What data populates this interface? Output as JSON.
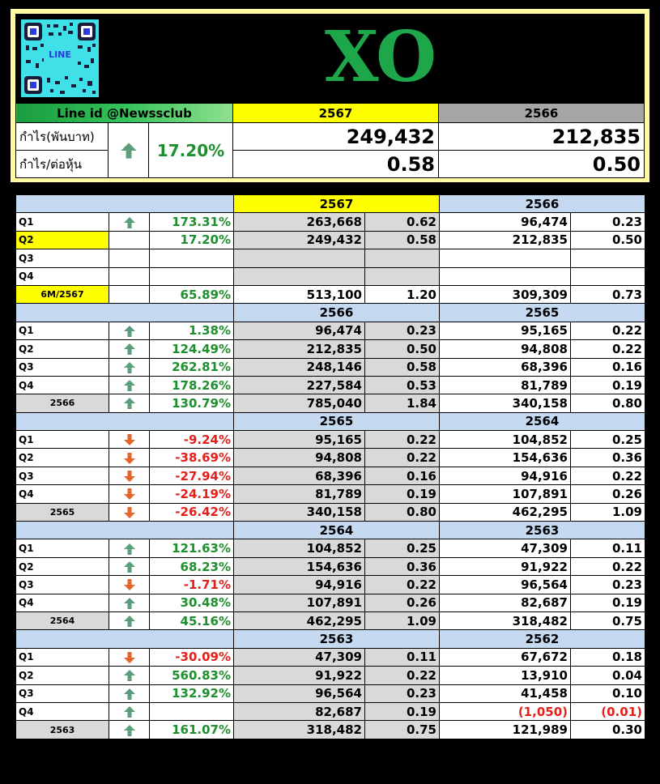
{
  "header": {
    "brand": "XO",
    "qr_label": "LINE",
    "line_id": "Line id @Newssclub",
    "year_current": "2567",
    "year_prev": "2566",
    "profit_label": "กำไร(พันบาท)",
    "eps_label": "กำไร/ต่อหุ้น",
    "growth": "17.20%",
    "profit_current": "249,432",
    "profit_prev": "212,835",
    "eps_current": "0.58",
    "eps_prev": "0.50",
    "colors": {
      "yellow": "#ffff00",
      "green": "#1e8f2e",
      "red": "#e3201a",
      "blue_band": "#c5d9f1"
    }
  },
  "sections": [
    {
      "year_a": "2567",
      "year_b": "2566",
      "rows": [
        {
          "label": "Q1",
          "arrow": "up",
          "pct": "173.31%",
          "a_profit": "263,668",
          "a_eps": "0.62",
          "b_profit": "96,474",
          "b_eps": "0.23"
        },
        {
          "label": "Q2",
          "arrow": "",
          "pct": "17.20%",
          "a_profit": "249,432",
          "a_eps": "0.58",
          "b_profit": "212,835",
          "b_eps": "0.50"
        },
        {
          "label": "Q3",
          "arrow": "",
          "pct": "",
          "a_profit": "",
          "a_eps": "",
          "b_profit": "",
          "b_eps": ""
        },
        {
          "label": "Q4",
          "arrow": "",
          "pct": "",
          "a_profit": "",
          "a_eps": "",
          "b_profit": "",
          "b_eps": ""
        }
      ],
      "total": {
        "label": "6M/2567",
        "arrow": "",
        "pct": "65.89%",
        "a_profit": "513,100",
        "a_eps": "1.20",
        "b_profit": "309,309",
        "b_eps": "0.73"
      }
    },
    {
      "year_a": "2566",
      "year_b": "2565",
      "rows": [
        {
          "label": "Q1",
          "arrow": "up",
          "pct": "1.38%",
          "a_profit": "96,474",
          "a_eps": "0.23",
          "b_profit": "95,165",
          "b_eps": "0.22"
        },
        {
          "label": "Q2",
          "arrow": "up",
          "pct": "124.49%",
          "a_profit": "212,835",
          "a_eps": "0.50",
          "b_profit": "94,808",
          "b_eps": "0.22"
        },
        {
          "label": "Q3",
          "arrow": "up",
          "pct": "262.81%",
          "a_profit": "248,146",
          "a_eps": "0.58",
          "b_profit": "68,396",
          "b_eps": "0.16"
        },
        {
          "label": "Q4",
          "arrow": "up",
          "pct": "178.26%",
          "a_profit": "227,584",
          "a_eps": "0.53",
          "b_profit": "81,789",
          "b_eps": "0.19"
        }
      ],
      "total": {
        "label": "2566",
        "arrow": "up",
        "pct": "130.79%",
        "a_profit": "785,040",
        "a_eps": "1.84",
        "b_profit": "340,158",
        "b_eps": "0.80"
      }
    },
    {
      "year_a": "2565",
      "year_b": "2564",
      "rows": [
        {
          "label": "Q1",
          "arrow": "down",
          "pct": "-9.24%",
          "a_profit": "95,165",
          "a_eps": "0.22",
          "b_profit": "104,852",
          "b_eps": "0.25"
        },
        {
          "label": "Q2",
          "arrow": "down",
          "pct": "-38.69%",
          "a_profit": "94,808",
          "a_eps": "0.22",
          "b_profit": "154,636",
          "b_eps": "0.36"
        },
        {
          "label": "Q3",
          "arrow": "down",
          "pct": "-27.94%",
          "a_profit": "68,396",
          "a_eps": "0.16",
          "b_profit": "94,916",
          "b_eps": "0.22"
        },
        {
          "label": "Q4",
          "arrow": "down",
          "pct": "-24.19%",
          "a_profit": "81,789",
          "a_eps": "0.19",
          "b_profit": "107,891",
          "b_eps": "0.26"
        }
      ],
      "total": {
        "label": "2565",
        "arrow": "down",
        "pct": "-26.42%",
        "a_profit": "340,158",
        "a_eps": "0.80",
        "b_profit": "462,295",
        "b_eps": "1.09"
      }
    },
    {
      "year_a": "2564",
      "year_b": "2563",
      "rows": [
        {
          "label": "Q1",
          "arrow": "up",
          "pct": "121.63%",
          "a_profit": "104,852",
          "a_eps": "0.25",
          "b_profit": "47,309",
          "b_eps": "0.11"
        },
        {
          "label": "Q2",
          "arrow": "up",
          "pct": "68.23%",
          "a_profit": "154,636",
          "a_eps": "0.36",
          "b_profit": "91,922",
          "b_eps": "0.22"
        },
        {
          "label": "Q3",
          "arrow": "down",
          "pct": "-1.71%",
          "a_profit": "94,916",
          "a_eps": "0.22",
          "b_profit": "96,564",
          "b_eps": "0.23"
        },
        {
          "label": "Q4",
          "arrow": "up",
          "pct": "30.48%",
          "a_profit": "107,891",
          "a_eps": "0.26",
          "b_profit": "82,687",
          "b_eps": "0.19"
        }
      ],
      "total": {
        "label": "2564",
        "arrow": "up",
        "pct": "45.16%",
        "a_profit": "462,295",
        "a_eps": "1.09",
        "b_profit": "318,482",
        "b_eps": "0.75"
      }
    },
    {
      "year_a": "2563",
      "year_b": "2562",
      "rows": [
        {
          "label": "Q1",
          "arrow": "down",
          "pct": "-30.09%",
          "a_profit": "47,309",
          "a_eps": "0.11",
          "b_profit": "67,672",
          "b_eps": "0.18"
        },
        {
          "label": "Q2",
          "arrow": "up",
          "pct": "560.83%",
          "a_profit": "91,922",
          "a_eps": "0.22",
          "b_profit": "13,910",
          "b_eps": "0.04"
        },
        {
          "label": "Q3",
          "arrow": "up",
          "pct": "132.92%",
          "a_profit": "96,564",
          "a_eps": "0.23",
          "b_profit": "41,458",
          "b_eps": "0.10"
        },
        {
          "label": "Q4",
          "arrow": "up",
          "pct": "",
          "a_profit": "82,687",
          "a_eps": "0.19",
          "b_profit": "(1,050)",
          "b_eps": "(0.01)",
          "b_negative": true
        }
      ],
      "total": {
        "label": "2563",
        "arrow": "up",
        "pct": "161.07%",
        "a_profit": "318,482",
        "a_eps": "0.75",
        "b_profit": "121,989",
        "b_eps": "0.30"
      }
    }
  ]
}
